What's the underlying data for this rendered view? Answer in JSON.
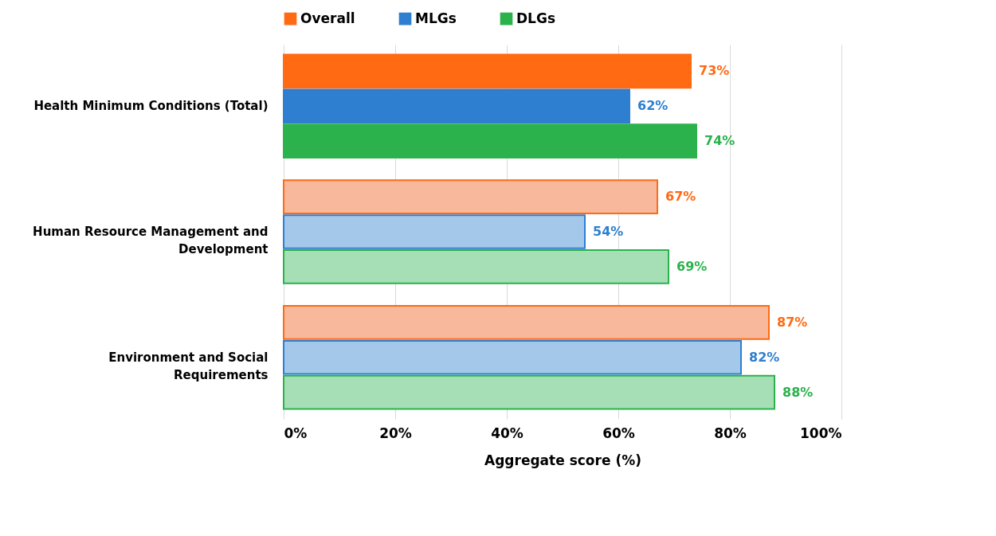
{
  "chart_data": {
    "type": "bar",
    "orientation": "horizontal",
    "xlabel": "Aggregate score (%)",
    "categories": [
      "Health Minimum Conditions (Total)",
      "Human Resource Management and Development",
      "Environment and Social Requirements"
    ],
    "series": [
      {
        "name": "Overall",
        "color": "#ff6a13",
        "colors": [
          "#ff6a13",
          "#f7b89c",
          "#f7b89c"
        ],
        "values": [
          73,
          67,
          87
        ],
        "value_labels": [
          "73%",
          "67%",
          "87%"
        ]
      },
      {
        "name": "MLGs",
        "color": "#2e7fd0",
        "colors": [
          "#2e7fd0",
          "#a3c8ea",
          "#a3c8ea"
        ],
        "values": [
          62,
          54,
          82
        ],
        "value_labels": [
          "62%",
          "54%",
          "82%"
        ]
      },
      {
        "name": "DLGs",
        "color": "#2bb24c",
        "colors": [
          "#2bb24c",
          "#a6dfb6",
          "#a6dfb6"
        ],
        "values": [
          74,
          69,
          88
        ],
        "value_labels": [
          "74%",
          "69%",
          "88%"
        ]
      }
    ],
    "xlim": [
      0,
      100
    ],
    "xticks": [
      {
        "value": 0,
        "label": "0%"
      },
      {
        "value": 20,
        "label": "20%"
      },
      {
        "value": 40,
        "label": "40%"
      },
      {
        "value": 60,
        "label": "60%"
      },
      {
        "value": 80,
        "label": "80%"
      },
      {
        "value": 100,
        "label": "100%"
      }
    ],
    "grid": true,
    "legend": "top"
  }
}
